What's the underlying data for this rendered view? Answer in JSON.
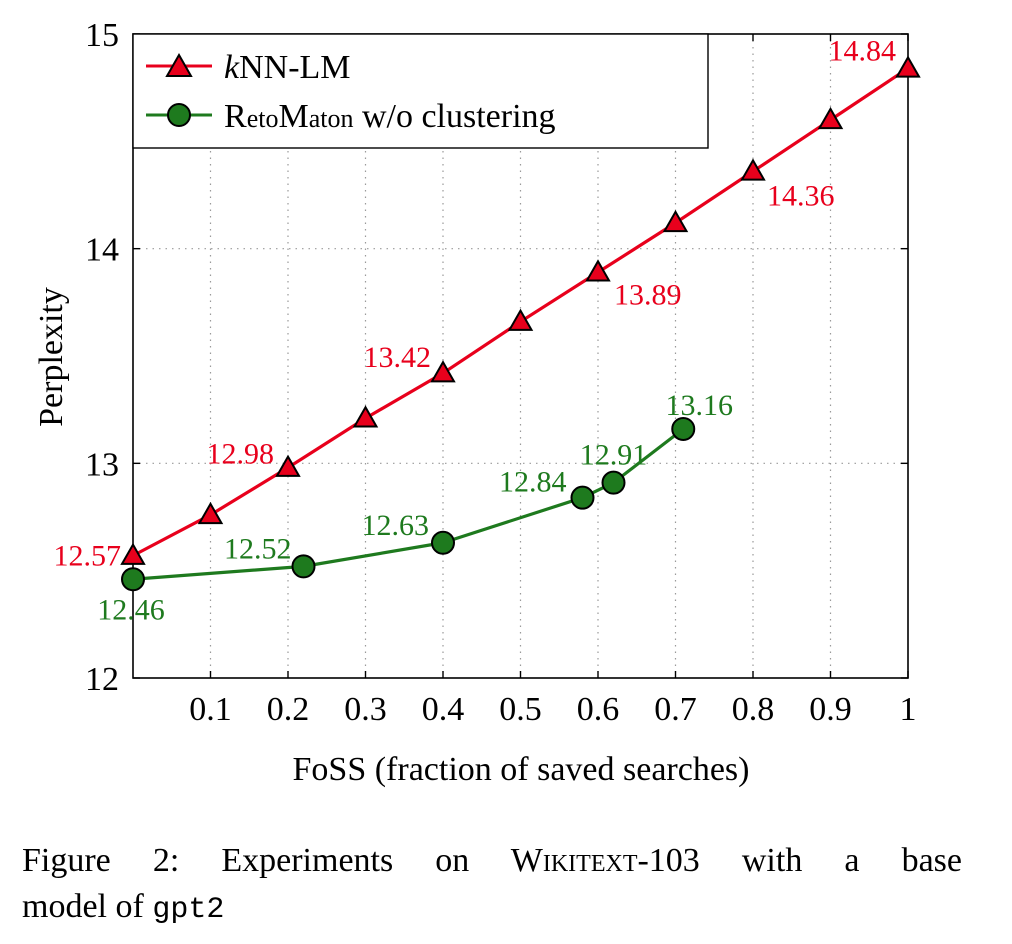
{
  "chart_data": {
    "type": "line",
    "ylabel": "Perplexity",
    "xlabel": "FoSS (fraction of saved searches)",
    "xlim": [
      0,
      1
    ],
    "ylim": [
      12,
      15
    ],
    "x_ticks": [
      0.1,
      0.2,
      0.3,
      0.4,
      0.5,
      0.6,
      0.7,
      0.8,
      0.9,
      1
    ],
    "x_tick_labels": [
      "0.1",
      "0.2",
      "0.3",
      "0.4",
      "0.5",
      "0.6",
      "0.7",
      "0.8",
      "0.9",
      "1"
    ],
    "y_ticks": [
      12,
      13,
      14,
      15
    ],
    "y_tick_labels": [
      "12",
      "13",
      "14",
      "15"
    ],
    "grid": true,
    "legend_position": "top-left",
    "series": [
      {
        "name": "kNN-LM",
        "color": "#e8001c",
        "marker": "triangle",
        "marker_fill": "#e8001c",
        "x": [
          0,
          0.1,
          0.2,
          0.3,
          0.4,
          0.5,
          0.6,
          0.7,
          0.8,
          0.9,
          1.0
        ],
        "y": [
          12.57,
          12.76,
          12.98,
          13.21,
          13.42,
          13.66,
          13.89,
          14.12,
          14.36,
          14.6,
          14.84
        ],
        "data_labels": [
          {
            "index": 0,
            "text": "12.57"
          },
          {
            "index": 2,
            "text": "12.98"
          },
          {
            "index": 4,
            "text": "13.42"
          },
          {
            "index": 6,
            "text": "13.89"
          },
          {
            "index": 8,
            "text": "14.36"
          },
          {
            "index": 10,
            "text": "14.84"
          }
        ]
      },
      {
        "name": "RetoMaton w/o clustering",
        "color": "#1e7a1e",
        "marker": "circle",
        "marker_fill": "#1e7a1e",
        "x": [
          0,
          0.22,
          0.4,
          0.58,
          0.62,
          0.71
        ],
        "y": [
          12.46,
          12.52,
          12.63,
          12.84,
          12.91,
          13.16
        ],
        "data_labels": [
          {
            "index": 0,
            "text": "12.46"
          },
          {
            "index": 1,
            "text": "12.52"
          },
          {
            "index": 2,
            "text": "12.63"
          },
          {
            "index": 3,
            "text": "12.84"
          },
          {
            "index": 4,
            "text": "12.91"
          },
          {
            "index": 5,
            "text": "13.16"
          }
        ]
      }
    ]
  },
  "legend": {
    "knn_prefix": "k",
    "knn_rest": "NN-LM",
    "reto_R": "R",
    "reto_eto": "eto",
    "reto_M": "M",
    "reto_aton": "aton",
    "reto_rest": " w/o clustering"
  },
  "caption": {
    "line1_prefix": "Figure 2:  Experiments on ",
    "dataset_W": "W",
    "dataset_ikitext": "ikitext",
    "dataset_suffix": "-103 with a base",
    "line2_prefix": "model of ",
    "model_name": "gpt2"
  }
}
